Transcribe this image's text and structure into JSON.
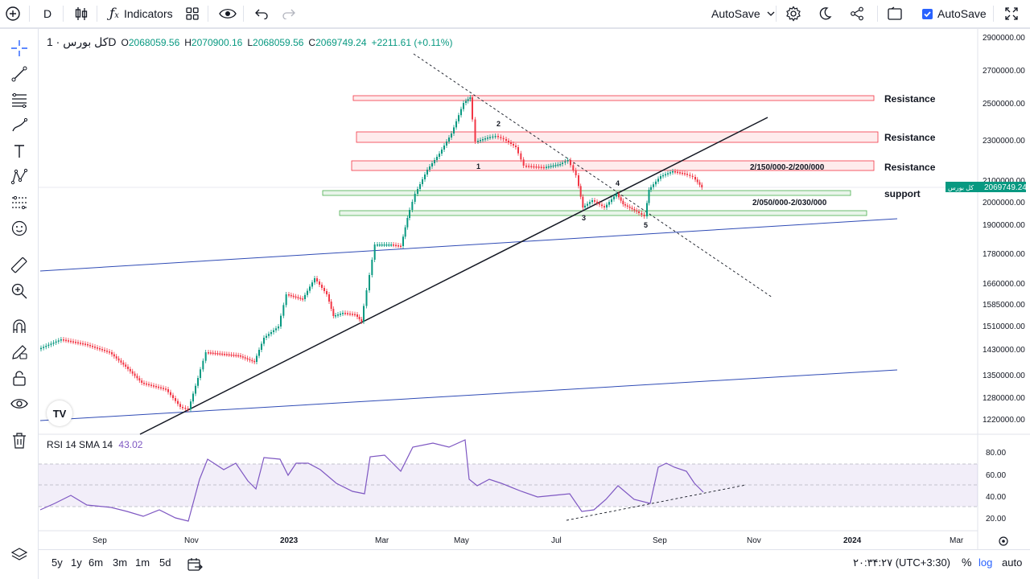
{
  "toolbar": {
    "interval": "D",
    "indicators_label": "Indicators",
    "autosave_dropdown_label": "AutoSave",
    "autosave_checkbox_label": "AutoSave",
    "autosave_checked": true
  },
  "legend": {
    "symbol": "کل بورس · 1D",
    "open_label": "O",
    "open": "2068059.56",
    "high_label": "H",
    "high": "2070900.16",
    "low_label": "L",
    "low": "2068059.56",
    "close_label": "C",
    "close": "2069749.24",
    "change": "+2211.61 (+0.11%)"
  },
  "price_axis": {
    "labels": [
      "2900000.00",
      "2700000.00",
      "2500000.00",
      "2300000.00",
      "2100000.00",
      "2000000.00",
      "1900000.00",
      "1780000.00",
      "1660000.00",
      "1585000.00",
      "1510000.00",
      "1430000.00",
      "1350000.00",
      "1280000.00",
      "1220000.00"
    ],
    "last_price": "2069749.24",
    "last_price_tag": "کل بورس"
  },
  "rsi": {
    "label": "RSI 14 SMA 14",
    "value": "43.02",
    "axis_labels": [
      "80.00",
      "60.00",
      "40.00",
      "20.00"
    ]
  },
  "time_axis": {
    "labels": [
      "Sep",
      "Nov",
      "2023",
      "Mar",
      "May",
      "Jul",
      "Sep",
      "Nov",
      "2024",
      "Mar"
    ],
    "bold": [
      "2023",
      "2024"
    ]
  },
  "annotations": {
    "resistance_1": "Resistance",
    "resistance_2": "Resistance",
    "resistance_3": "Resistance",
    "support": "support",
    "zone_upper": "2/150/000-2/200/000",
    "zone_lower": "2/050/000-2/030/000",
    "wave_labels": [
      "1",
      "2",
      "3",
      "4",
      "5"
    ]
  },
  "bottom": {
    "ranges": [
      "5y",
      "1y",
      "6m",
      "3m",
      "1m",
      "5d"
    ],
    "time": "۲۰:۳۴:۲۷ (UTC+3:30)",
    "percent": "%",
    "log": "log",
    "auto": "auto"
  },
  "colors": {
    "up": "#089981",
    "down": "#f23645",
    "rsi": "#7e57c2",
    "accent": "#2962ff",
    "resistance_zone": "#f23645",
    "support_zone": "#4caf50"
  },
  "logo": "TV"
}
